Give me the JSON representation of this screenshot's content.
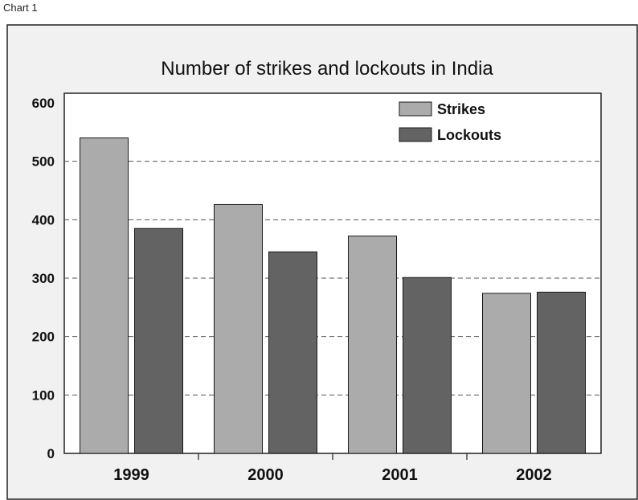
{
  "caption": "Chart 1",
  "colors": {
    "frame_bg": "#f1f1f1",
    "plot_bg": "#ffffff",
    "strikes": "#ababab",
    "lockouts": "#636363",
    "gridline": "#555555",
    "text": "#111111"
  },
  "chart_data": {
    "type": "bar",
    "title": "Number of strikes and lockouts in India",
    "xlabel": "",
    "ylabel": "",
    "categories": [
      "1999",
      "2000",
      "2001",
      "2002"
    ],
    "series": [
      {
        "name": "Strikes",
        "values": [
          540,
          426,
          372,
          274
        ]
      },
      {
        "name": "Lockouts",
        "values": [
          385,
          345,
          301,
          276
        ]
      }
    ],
    "ylim": [
      0,
      600
    ],
    "yticks": [
      "0",
      "100",
      "200",
      "300",
      "400",
      "500",
      "600"
    ],
    "grid": true,
    "legend_position": "top-right"
  }
}
